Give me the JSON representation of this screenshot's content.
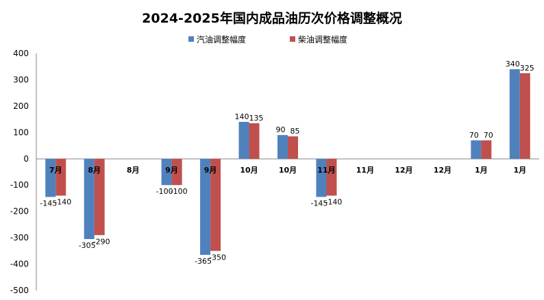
{
  "chart_data": {
    "type": "bar",
    "title": "2024-2025年国内成品油历次价格调整概况",
    "xlabel": "",
    "ylabel": "",
    "ylim": [
      -500,
      400
    ],
    "yticks": [
      -500,
      -400,
      -300,
      -200,
      -100,
      0,
      100,
      200,
      300,
      400
    ],
    "grid": false,
    "legend_position": "top-center",
    "categories": [
      "7月",
      "8月",
      "8月",
      "9月",
      "9月",
      "10月",
      "10月",
      "11月",
      "11月",
      "12月",
      "12月",
      "1月",
      "1月"
    ],
    "series": [
      {
        "name": "汽油调整幅度",
        "color": "#4f81bd",
        "values": [
          -145,
          -305,
          0,
          -100,
          -365,
          140,
          90,
          -145,
          0,
          0,
          0,
          70,
          340
        ],
        "labels": [
          "-145",
          "-305",
          "",
          "-100",
          "-365",
          "140",
          "90",
          "-145",
          "",
          "",
          "",
          "70",
          "340"
        ]
      },
      {
        "name": "柴油调整幅度",
        "color": "#c0504d",
        "values": [
          -140,
          -290,
          0,
          -100,
          -350,
          135,
          85,
          -140,
          0,
          0,
          0,
          70,
          325
        ],
        "labels": [
          "-140",
          "-290",
          "",
          "-100",
          "-350",
          "135",
          "85",
          "-140",
          "",
          "",
          "",
          "70",
          "325"
        ]
      }
    ]
  }
}
